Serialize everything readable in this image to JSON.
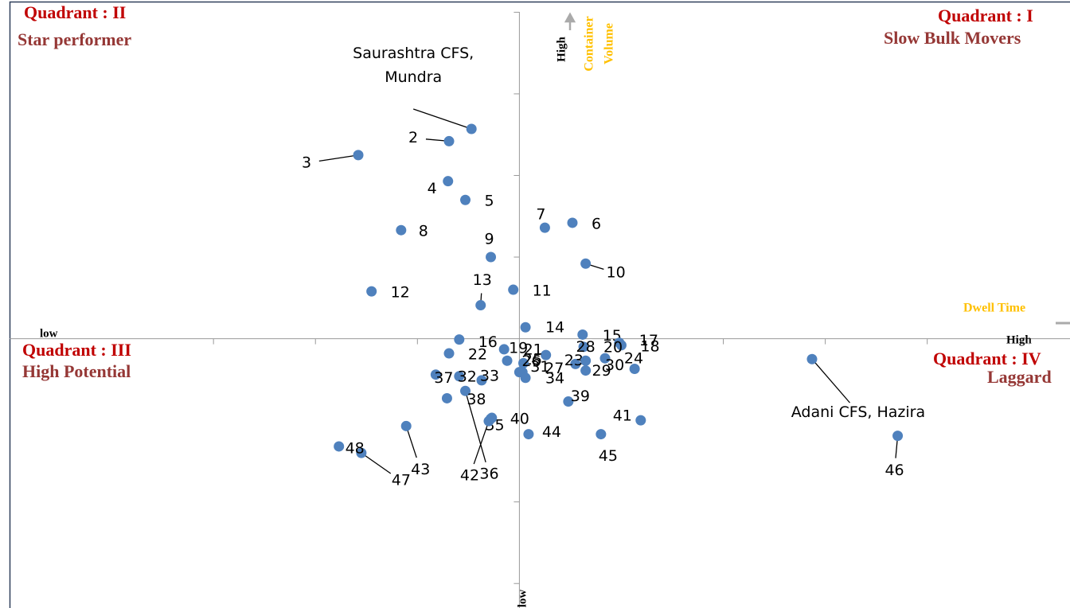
{
  "chart_data": {
    "type": "scatter",
    "labels": [
      "Saurashtra CFS, Mundra",
      "2",
      "3",
      "4",
      "5",
      "6",
      "7",
      "8",
      "9",
      "10",
      "11",
      "12",
      "13",
      "14",
      "15",
      "16",
      "17",
      "18",
      "19",
      "20",
      "21",
      "22",
      "23",
      "24",
      "25",
      "26",
      "27",
      "28",
      "29",
      "30",
      "31",
      "32",
      "33",
      "34",
      "35",
      "36",
      "37",
      "38",
      "39",
      "40",
      "41",
      "42",
      "43",
      "44",
      "45",
      "46",
      "47",
      "48",
      "Adani CFS, Hazira"
    ],
    "x": [
      -0.47,
      -0.69,
      -1.58,
      -0.7,
      -0.53,
      0.52,
      0.25,
      -1.16,
      -0.28,
      0.65,
      -0.06,
      -1.45,
      -0.38,
      0.06,
      0.62,
      -0.59,
      0.98,
      1.0,
      -0.15,
      0.63,
      0.26,
      -0.69,
      0.55,
      0.84,
      -0.12,
      0.04,
      0.03,
      0.65,
      0.65,
      1.13,
      0.0,
      -0.59,
      -0.37,
      0.06,
      -0.28,
      -0.53,
      -0.82,
      -0.71,
      0.48,
      -0.27,
      1.19,
      -0.3,
      -1.11,
      0.09,
      0.8,
      3.71,
      -1.55,
      -1.77,
      2.87
    ],
    "y": [
      2.57,
      2.42,
      2.25,
      1.93,
      1.7,
      1.42,
      1.36,
      1.33,
      1.0,
      0.92,
      0.6,
      0.58,
      0.41,
      0.14,
      0.05,
      -0.01,
      -0.05,
      -0.08,
      -0.13,
      -0.1,
      -0.2,
      -0.18,
      -0.31,
      -0.24,
      -0.27,
      -0.3,
      -0.41,
      -0.27,
      -0.39,
      -0.37,
      -0.41,
      -0.46,
      -0.51,
      -0.48,
      -0.98,
      -0.64,
      -0.44,
      -0.73,
      -0.77,
      -0.97,
      -1.0,
      -1.01,
      -1.07,
      -1.17,
      -1.17,
      -1.19,
      -1.4,
      -1.32,
      -0.25
    ],
    "color": "#4f81bd",
    "label_color": "#000000",
    "highlighted_labels": [
      "35"
    ],
    "highlight_color": "#ff0000",
    "xlim": [
      -5,
      5.4
    ],
    "ylim": [
      -3.3,
      4.15
    ],
    "xticks": [
      -3,
      -2,
      -1,
      1,
      2,
      3,
      4,
      5
    ],
    "yticks": [
      4,
      3,
      2,
      1,
      -1,
      -2,
      -3
    ],
    "annotations": {
      "q1": "Quadrant : I",
      "q1_name": "Slow Bulk Movers",
      "q2": "Quadrant : II",
      "q2_name": "Star performer",
      "q3": "Quadrant : III",
      "q3_name": "High Potential",
      "q4": "Quadrant : IV",
      "q4_name": "Laggard",
      "x_low": "low",
      "x_high": "High",
      "x_label": "Dwell Time",
      "y_high": "High",
      "y_label_1": "Container",
      "y_label_2": "Volume",
      "y_low": "low"
    }
  }
}
